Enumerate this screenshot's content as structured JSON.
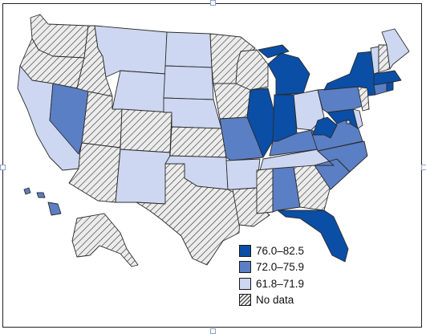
{
  "legend": [
    {
      "label": "76.0–82.5",
      "color": "#0a4ea6"
    },
    {
      "label": "72.0–75.9",
      "color": "#5b7fc4"
    },
    {
      "label": "61.8–71.9",
      "color": "#cdd7f1"
    },
    {
      "label": "No data",
      "color": "hatch"
    }
  ],
  "colors": {
    "dark": "#0a4ea6",
    "mid": "#5b7fc4",
    "light": "#cdd7f1",
    "nodata_bg": "#e6e6e6",
    "border": "#2b2b2b"
  },
  "states": {
    "WA": "nodata",
    "OR": "nodata",
    "CA": "light",
    "NV": "mid",
    "ID": "nodata",
    "MT": "light",
    "WY": "light",
    "UT": "nodata",
    "AZ": "nodata",
    "CO": "nodata",
    "NM": "light",
    "ND": "light",
    "SD": "light",
    "NE": "light",
    "KS": "nodata",
    "OK": "light",
    "TX": "nodata",
    "MN": "nodata",
    "IA": "nodata",
    "MO": "mid",
    "AR": "light",
    "LA": "nodata",
    "WI": "nodata",
    "IL": "dark",
    "MI": "dark",
    "IN": "dark",
    "OH": "light",
    "KY": "mid",
    "TN": "light",
    "MS": "nodata",
    "AL": "mid",
    "GA": "nodata",
    "FL": "dark",
    "SC": "mid",
    "NC": "mid",
    "VA": "mid",
    "WV": "dark",
    "MD": "dark",
    "DE": "light",
    "PA": "mid",
    "NY": "dark",
    "NJ": "nodata",
    "CT": "mid",
    "RI": "dark",
    "MA": "dark",
    "VT": "light",
    "NH": "nodata",
    "ME": "light",
    "AK": "nodata",
    "HI": "mid",
    "DC": "light"
  }
}
